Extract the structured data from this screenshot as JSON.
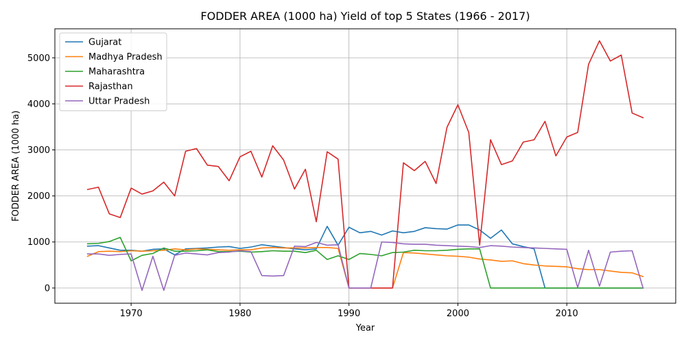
{
  "chart_data": {
    "type": "line",
    "title": "FODDER AREA (1000 ha) Yield of top 5 States (1966 - 2017)",
    "xlabel": "Year",
    "ylabel": "FODDER AREA (1000 ha)",
    "xlim": [
      1963,
      2020
    ],
    "ylim": [
      -330,
      5630
    ],
    "xticks": [
      1970,
      1980,
      1990,
      2000,
      2010
    ],
    "yticks": [
      0,
      1000,
      2000,
      3000,
      4000,
      5000
    ],
    "grid": true,
    "legend_position": "upper-left",
    "x": [
      1966,
      1967,
      1968,
      1969,
      1970,
      1971,
      1972,
      1973,
      1974,
      1975,
      1976,
      1977,
      1978,
      1979,
      1980,
      1981,
      1982,
      1983,
      1984,
      1985,
      1986,
      1987,
      1988,
      1989,
      1990,
      1991,
      1992,
      1993,
      1994,
      1995,
      1996,
      1997,
      1998,
      1999,
      2000,
      2001,
      2002,
      2003,
      2004,
      2005,
      2006,
      2007,
      2008,
      2009,
      2010,
      2011,
      2012,
      2013,
      2014,
      2015,
      2016,
      2017
    ],
    "series": [
      {
        "name": "Gujarat",
        "color": "#1f77b4",
        "values": [
          910,
          920,
          870,
          820,
          820,
          800,
          840,
          850,
          720,
          850,
          860,
          870,
          890,
          900,
          860,
          890,
          940,
          910,
          880,
          850,
          830,
          850,
          1340,
          930,
          1320,
          1200,
          1230,
          1150,
          1240,
          1200,
          1230,
          1310,
          1290,
          1280,
          1370,
          1370,
          1260,
          1080,
          1260,
          960,
          900,
          850,
          0,
          0,
          0,
          0,
          0,
          0,
          0,
          0,
          0,
          0
        ]
      },
      {
        "name": "Madhya Pradesh",
        "color": "#ff7f0e",
        "values": [
          690,
          790,
          800,
          790,
          810,
          800,
          810,
          820,
          850,
          830,
          850,
          840,
          830,
          820,
          830,
          830,
          870,
          880,
          870,
          870,
          870,
          880,
          880,
          860,
          0,
          0,
          0,
          0,
          0,
          770,
          760,
          740,
          720,
          700,
          690,
          670,
          630,
          610,
          580,
          590,
          530,
          500,
          480,
          470,
          460,
          420,
          400,
          400,
          370,
          340,
          330,
          250
        ]
      },
      {
        "name": "Maharashtra",
        "color": "#2ca02c",
        "values": [
          960,
          970,
          1010,
          1100,
          590,
          710,
          750,
          870,
          800,
          800,
          810,
          830,
          790,
          790,
          800,
          780,
          790,
          810,
          800,
          800,
          770,
          820,
          620,
          700,
          620,
          750,
          730,
          700,
          770,
          780,
          820,
          810,
          810,
          820,
          840,
          850,
          850,
          0,
          0,
          0,
          0,
          0,
          0,
          0,
          0,
          0,
          0,
          0,
          0,
          0,
          0,
          0
        ]
      },
      {
        "name": "Rajasthan",
        "color": "#d62728",
        "values": [
          2140,
          2190,
          1610,
          1530,
          2170,
          2040,
          2110,
          2300,
          2000,
          2970,
          3030,
          2670,
          2640,
          2330,
          2850,
          2970,
          2410,
          3090,
          2780,
          2150,
          2580,
          1440,
          2960,
          2800,
          0,
          0,
          0,
          0,
          0,
          2720,
          2550,
          2750,
          2270,
          3490,
          3980,
          3380,
          930,
          3220,
          2680,
          2760,
          3170,
          3220,
          3620,
          2870,
          3280,
          3380,
          4860,
          5370,
          4930,
          5060,
          3800,
          3700
        ]
      },
      {
        "name": "Uttar Pradesh",
        "color": "#9467bd",
        "values": [
          740,
          740,
          710,
          730,
          740,
          -50,
          690,
          -50,
          710,
          760,
          740,
          720,
          770,
          780,
          810,
          790,
          270,
          260,
          270,
          910,
          900,
          990,
          930,
          940,
          0,
          0,
          0,
          1000,
          990,
          960,
          950,
          950,
          930,
          920,
          910,
          900,
          880,
          920,
          910,
          890,
          880,
          870,
          860,
          850,
          840,
          10,
          820,
          40,
          780,
          800,
          810,
          0
        ]
      }
    ]
  }
}
